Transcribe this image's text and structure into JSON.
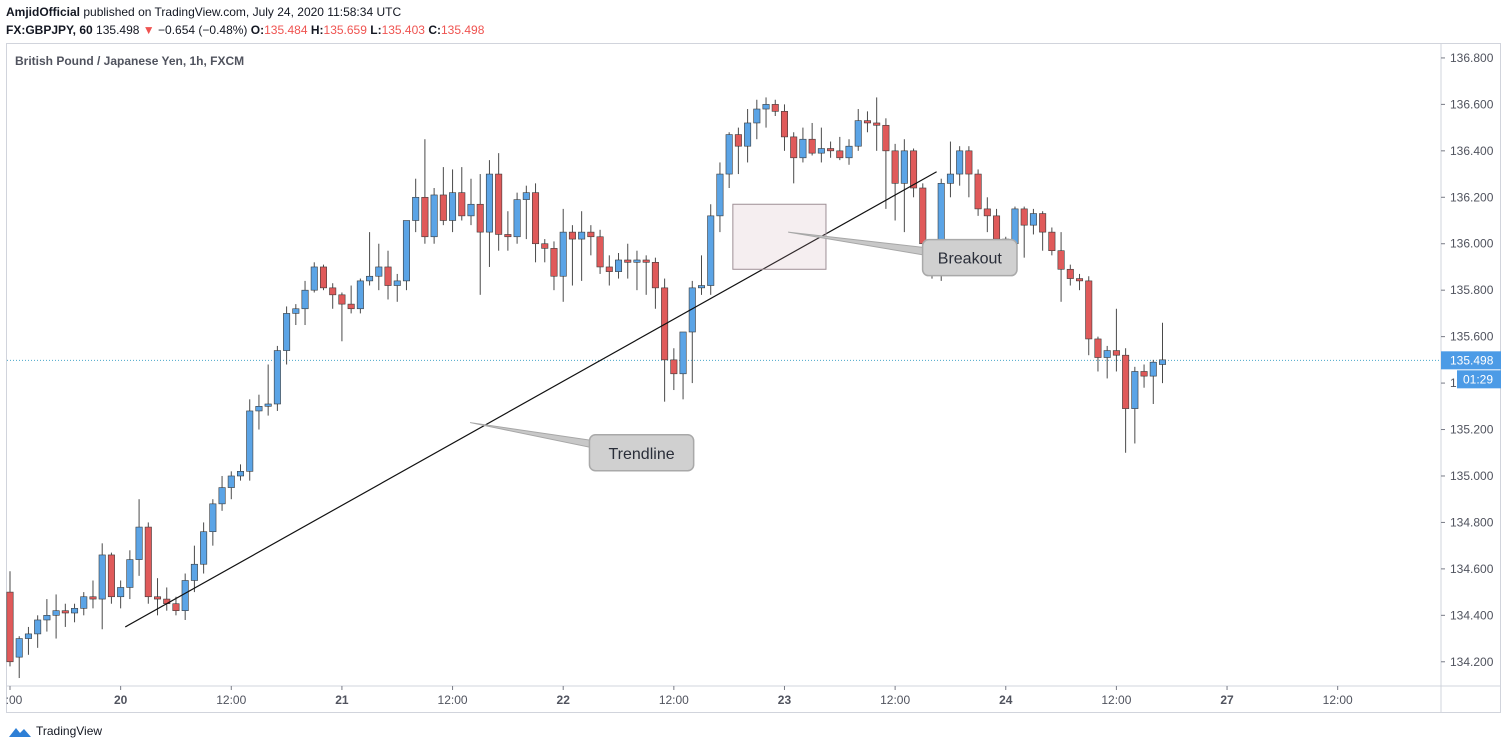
{
  "header": {
    "publisher": "AmjidOfficial",
    "published_text": "published on TradingView.com, July 24, 2020 11:58:34 UTC",
    "symbol": "FX:GBPJPY, 60",
    "last_price": "135.498",
    "change_arrow": "▼",
    "change": "−0.654 (−0.48%)",
    "o_label": "O:",
    "o_value": "135.484",
    "h_label": "H:",
    "h_value": "135.659",
    "l_label": "L:",
    "l_value": "135.403",
    "c_label": "C:",
    "c_value": "135.498"
  },
  "footer": {
    "brand": "TradingView"
  },
  "colors": {
    "up": "#5ba4e6",
    "down": "#e05a5a",
    "price_line": "#4aa8c9",
    "price_badge": "#4c9be6"
  },
  "chart_data": {
    "type": "candlestick",
    "title": "British Pound / Japanese Yen, 1h, FXCM",
    "ylim": [
      134.1,
      136.86
    ],
    "y_ticks": [
      "136.800",
      "136.600",
      "136.400",
      "136.200",
      "136.000",
      "135.800",
      "135.600",
      "135.400",
      "135.200",
      "135.000",
      "134.800",
      "134.600",
      "134.400",
      "134.200"
    ],
    "x_ticks": [
      ":00",
      "20",
      "12:00",
      "21",
      "12:00",
      "22",
      "12:00",
      "23",
      "12:00",
      "24",
      "12:00",
      "27",
      "12:00"
    ],
    "x_bold": [
      false,
      true,
      false,
      true,
      false,
      true,
      false,
      true,
      false,
      true,
      false,
      true,
      false
    ],
    "x_tick_index": [
      0,
      12,
      24,
      36,
      48,
      60,
      72,
      84,
      96,
      108,
      120,
      132,
      144
    ],
    "current_price": "135.498",
    "current_price_value": 135.498,
    "countdown": "01:29",
    "grid": false,
    "candles": [
      [
        134.5,
        134.59,
        134.18,
        134.2
      ],
      [
        134.22,
        134.31,
        134.13,
        134.3
      ],
      [
        134.3,
        134.35,
        134.23,
        134.32
      ],
      [
        134.32,
        134.4,
        134.26,
        134.38
      ],
      [
        134.38,
        134.47,
        134.33,
        134.4
      ],
      [
        134.4,
        134.49,
        134.3,
        134.42
      ],
      [
        134.42,
        134.45,
        134.35,
        134.41
      ],
      [
        134.41,
        134.45,
        134.37,
        134.43
      ],
      [
        134.43,
        134.5,
        134.4,
        134.48
      ],
      [
        134.48,
        134.55,
        134.43,
        134.47
      ],
      [
        134.47,
        134.71,
        134.34,
        134.66
      ],
      [
        134.66,
        134.67,
        134.45,
        134.48
      ],
      [
        134.48,
        134.55,
        134.43,
        134.52
      ],
      [
        134.52,
        134.68,
        134.47,
        134.64
      ],
      [
        134.64,
        134.9,
        134.57,
        134.78
      ],
      [
        134.78,
        134.8,
        134.45,
        134.48
      ],
      [
        134.48,
        134.56,
        134.4,
        134.47
      ],
      [
        134.47,
        134.52,
        134.42,
        134.45
      ],
      [
        134.45,
        134.48,
        134.4,
        134.42
      ],
      [
        134.42,
        134.58,
        134.38,
        134.55
      ],
      [
        134.55,
        134.7,
        134.5,
        134.62
      ],
      [
        134.62,
        134.8,
        134.58,
        134.76
      ],
      [
        134.76,
        134.9,
        134.7,
        134.88
      ],
      [
        134.88,
        135.0,
        134.85,
        134.95
      ],
      [
        134.95,
        135.02,
        134.9,
        135.0
      ],
      [
        135.0,
        135.05,
        134.98,
        135.02
      ],
      [
        135.02,
        135.33,
        134.98,
        135.28
      ],
      [
        135.28,
        135.35,
        135.2,
        135.3
      ],
      [
        135.3,
        135.48,
        135.26,
        135.31
      ],
      [
        135.31,
        135.56,
        135.28,
        135.54
      ],
      [
        135.54,
        135.73,
        135.48,
        135.7
      ],
      [
        135.7,
        135.74,
        135.65,
        135.72
      ],
      [
        135.72,
        135.84,
        135.65,
        135.8
      ],
      [
        135.8,
        135.92,
        135.79,
        135.9
      ],
      [
        135.9,
        135.91,
        135.8,
        135.81
      ],
      [
        135.81,
        135.83,
        135.72,
        135.78
      ],
      [
        135.78,
        135.79,
        135.58,
        135.74
      ],
      [
        135.74,
        135.82,
        135.7,
        135.72
      ],
      [
        135.72,
        135.85,
        135.7,
        135.84
      ],
      [
        135.84,
        136.05,
        135.82,
        135.86
      ],
      [
        135.86,
        136.0,
        135.8,
        135.9
      ],
      [
        135.9,
        135.97,
        135.76,
        135.82
      ],
      [
        135.82,
        135.87,
        135.75,
        135.84
      ],
      [
        135.84,
        136.1,
        135.8,
        136.1
      ],
      [
        136.1,
        136.28,
        136.05,
        136.2
      ],
      [
        136.2,
        136.45,
        136.0,
        136.03
      ],
      [
        136.03,
        136.24,
        136.0,
        136.21
      ],
      [
        136.21,
        136.33,
        136.08,
        136.1
      ],
      [
        136.1,
        136.32,
        136.05,
        136.22
      ],
      [
        136.22,
        136.33,
        136.1,
        136.12
      ],
      [
        136.12,
        136.28,
        136.08,
        136.17
      ],
      [
        136.17,
        136.3,
        135.78,
        136.05
      ],
      [
        136.05,
        136.36,
        135.9,
        136.3
      ],
      [
        136.3,
        136.39,
        135.97,
        136.04
      ],
      [
        136.04,
        136.14,
        135.97,
        136.03
      ],
      [
        136.03,
        136.22,
        136.0,
        136.19
      ],
      [
        136.19,
        136.25,
        136.02,
        136.22
      ],
      [
        136.22,
        136.26,
        135.92,
        136.0
      ],
      [
        136.0,
        136.02,
        135.92,
        135.98
      ],
      [
        135.98,
        136.01,
        135.8,
        135.86
      ],
      [
        135.86,
        136.15,
        135.75,
        136.05
      ],
      [
        136.05,
        136.08,
        135.82,
        136.02
      ],
      [
        136.02,
        136.14,
        135.84,
        136.05
      ],
      [
        136.05,
        136.08,
        135.95,
        136.03
      ],
      [
        136.03,
        136.06,
        135.87,
        135.9
      ],
      [
        135.9,
        135.95,
        135.82,
        135.88
      ],
      [
        135.88,
        135.96,
        135.85,
        135.93
      ],
      [
        135.93,
        136.0,
        135.85,
        135.92
      ],
      [
        135.92,
        135.97,
        135.8,
        135.93
      ],
      [
        135.93,
        135.95,
        135.78,
        135.92
      ],
      [
        135.92,
        135.94,
        135.72,
        135.81
      ],
      [
        135.81,
        135.85,
        135.32,
        135.5
      ],
      [
        135.5,
        135.55,
        135.37,
        135.44
      ],
      [
        135.44,
        135.6,
        135.33,
        135.62
      ],
      [
        135.62,
        135.84,
        135.4,
        135.81
      ],
      [
        135.81,
        135.95,
        135.78,
        135.82
      ],
      [
        135.82,
        136.17,
        135.78,
        136.12
      ],
      [
        136.12,
        136.35,
        136.05,
        136.3
      ],
      [
        136.3,
        136.48,
        136.24,
        136.47
      ],
      [
        136.47,
        136.5,
        136.3,
        136.42
      ],
      [
        136.42,
        136.58,
        136.35,
        136.52
      ],
      [
        136.52,
        136.62,
        136.45,
        136.58
      ],
      [
        136.58,
        136.63,
        136.5,
        136.6
      ],
      [
        136.6,
        136.62,
        136.55,
        136.57
      ],
      [
        136.57,
        136.6,
        136.4,
        136.46
      ],
      [
        136.46,
        136.48,
        136.26,
        136.37
      ],
      [
        136.37,
        136.5,
        136.35,
        136.45
      ],
      [
        136.45,
        136.52,
        136.38,
        136.39
      ],
      [
        136.39,
        136.5,
        136.35,
        136.41
      ],
      [
        136.41,
        136.44,
        136.37,
        136.4
      ],
      [
        136.4,
        136.46,
        136.36,
        136.37
      ],
      [
        136.37,
        136.45,
        136.34,
        136.42
      ],
      [
        136.42,
        136.58,
        136.4,
        136.53
      ],
      [
        136.53,
        136.57,
        136.48,
        136.52
      ],
      [
        136.52,
        136.63,
        136.4,
        136.51
      ],
      [
        136.51,
        136.54,
        136.15,
        136.4
      ],
      [
        136.4,
        136.43,
        136.1,
        136.26
      ],
      [
        136.26,
        136.45,
        136.05,
        136.4
      ],
      [
        136.4,
        136.41,
        136.2,
        136.24
      ],
      [
        136.24,
        136.26,
        135.98,
        136.0
      ],
      [
        136.0,
        136.02,
        135.85,
        135.88
      ],
      [
        135.88,
        136.28,
        135.84,
        136.26
      ],
      [
        136.26,
        136.44,
        136.2,
        136.3
      ],
      [
        136.3,
        136.42,
        136.25,
        136.4
      ],
      [
        136.4,
        136.42,
        136.2,
        136.3
      ],
      [
        136.3,
        136.32,
        136.12,
        136.15
      ],
      [
        136.15,
        136.2,
        136.05,
        136.12
      ],
      [
        136.12,
        136.15,
        135.96,
        136.02
      ],
      [
        136.02,
        136.03,
        135.97,
        136.0
      ],
      [
        136.0,
        136.16,
        135.98,
        136.15
      ],
      [
        136.15,
        136.16,
        135.94,
        136.08
      ],
      [
        136.08,
        136.15,
        136.04,
        136.13
      ],
      [
        136.13,
        136.14,
        135.97,
        136.05
      ],
      [
        136.05,
        136.07,
        135.95,
        135.97
      ],
      [
        135.97,
        136.05,
        135.75,
        135.89
      ],
      [
        135.89,
        135.91,
        135.82,
        135.85
      ],
      [
        135.85,
        135.87,
        135.8,
        135.84
      ],
      [
        135.84,
        135.86,
        135.52,
        135.59
      ],
      [
        135.59,
        135.6,
        135.45,
        135.51
      ],
      [
        135.51,
        135.56,
        135.42,
        135.54
      ],
      [
        135.54,
        135.72,
        135.45,
        135.52
      ],
      [
        135.52,
        135.55,
        135.1,
        135.29
      ],
      [
        135.29,
        135.47,
        135.14,
        135.45
      ],
      [
        135.45,
        135.48,
        135.38,
        135.43
      ],
      [
        135.43,
        135.5,
        135.31,
        135.49
      ],
      [
        135.48,
        135.66,
        135.4,
        135.5
      ]
    ],
    "annotations": [
      {
        "type": "trendline",
        "from": [
          12.5,
          134.35
        ],
        "to": [
          100.5,
          136.31
        ]
      },
      {
        "type": "box",
        "from": [
          78.4,
          136.17
        ],
        "to": [
          88.5,
          135.89
        ]
      },
      {
        "type": "callout",
        "text": "Trendline",
        "x": 68.5,
        "y": 135.1,
        "pointer": [
          49.9,
          135.23
        ]
      },
      {
        "type": "callout",
        "text": "Breakout",
        "x": 104.1,
        "y": 135.94,
        "pointer": [
          84.4,
          136.05
        ]
      }
    ]
  }
}
